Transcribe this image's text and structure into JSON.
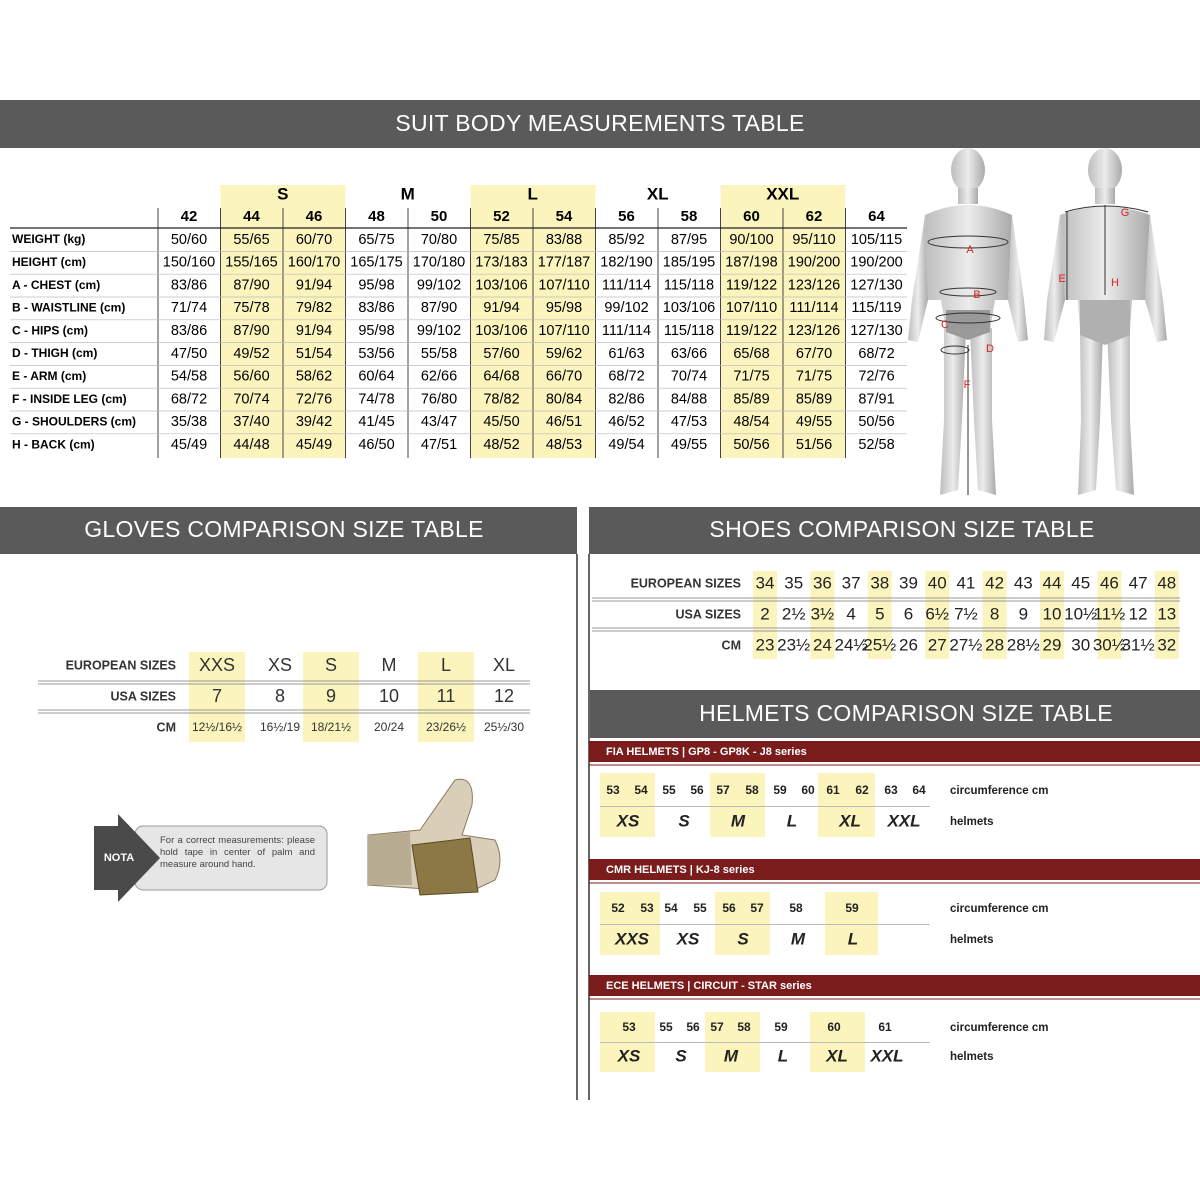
{
  "suit": {
    "title": "SUIT BODY MEASUREMENTS TABLE",
    "groups": [
      "S",
      "M",
      "L",
      "XL",
      "XXL"
    ],
    "sizes": [
      42,
      44,
      46,
      48,
      50,
      52,
      54,
      56,
      58,
      60,
      62,
      64
    ],
    "rows": [
      {
        "label": "WEIGHT (kg)",
        "values": [
          "50/60",
          "55/65",
          "60/70",
          "65/75",
          "70/80",
          "75/85",
          "83/88",
          "85/92",
          "87/95",
          "90/100",
          "95/110",
          "105/115"
        ]
      },
      {
        "label": "HEIGHT (cm)",
        "values": [
          "150/160",
          "155/165",
          "160/170",
          "165/175",
          "170/180",
          "173/183",
          "177/187",
          "182/190",
          "185/195",
          "187/198",
          "190/200",
          "190/200"
        ]
      },
      {
        "label": "A - CHEST (cm)",
        "values": [
          "83/86",
          "87/90",
          "91/94",
          "95/98",
          "99/102",
          "103/106",
          "107/110",
          "111/114",
          "115/118",
          "119/122",
          "123/126",
          "127/130"
        ]
      },
      {
        "label": "B - WAISTLINE (cm)",
        "values": [
          "71/74",
          "75/78",
          "79/82",
          "83/86",
          "87/90",
          "91/94",
          "95/98",
          "99/102",
          "103/106",
          "107/110",
          "111/114",
          "115/119"
        ]
      },
      {
        "label": "C - HIPS (cm)",
        "values": [
          "83/86",
          "87/90",
          "91/94",
          "95/98",
          "99/102",
          "103/106",
          "107/110",
          "111/114",
          "115/118",
          "119/122",
          "123/126",
          "127/130"
        ]
      },
      {
        "label": "D - THIGH (cm)",
        "values": [
          "47/50",
          "49/52",
          "51/54",
          "53/56",
          "55/58",
          "57/60",
          "59/62",
          "61/63",
          "63/66",
          "65/68",
          "67/70",
          "68/72"
        ]
      },
      {
        "label": "E - ARM (cm)",
        "values": [
          "54/58",
          "56/60",
          "58/62",
          "60/64",
          "62/66",
          "64/68",
          "66/70",
          "68/72",
          "70/74",
          "71/75",
          "71/75",
          "72/76"
        ]
      },
      {
        "label": "F - INSIDE LEG (cm)",
        "values": [
          "68/72",
          "70/74",
          "72/76",
          "74/78",
          "76/80",
          "78/82",
          "80/84",
          "82/86",
          "84/88",
          "85/89",
          "85/89",
          "87/91"
        ]
      },
      {
        "label": "G - SHOULDERS (cm)",
        "values": [
          "35/38",
          "37/40",
          "39/42",
          "41/45",
          "43/47",
          "45/50",
          "46/51",
          "46/52",
          "47/53",
          "48/54",
          "49/55",
          "50/56"
        ]
      },
      {
        "label": "H - BACK (cm)",
        "values": [
          "45/49",
          "44/48",
          "45/49",
          "46/50",
          "47/51",
          "48/52",
          "48/53",
          "49/54",
          "49/55",
          "50/56",
          "51/56",
          "52/58"
        ]
      }
    ],
    "figure_labels": [
      "A",
      "B",
      "C",
      "D",
      "E",
      "F",
      "G",
      "H"
    ]
  },
  "gloves": {
    "title": "GLOVES COMPARISON SIZE TABLE",
    "row_labels": [
      "EUROPEAN SIZES",
      "USA SIZES",
      "CM"
    ],
    "european": [
      "XXS",
      "XS",
      "S",
      "M",
      "L",
      "XL"
    ],
    "usa": [
      7,
      8,
      9,
      10,
      11,
      12
    ],
    "cm": [
      "12½/16½",
      "16½/19",
      "18/21½",
      "20/24",
      "23/26½",
      "25½/30"
    ],
    "note_label": "NOTA",
    "note": "For a correct measurements: please hold tape in center of palm and measure around hand."
  },
  "shoes": {
    "title": "SHOES COMPARISON SIZE TABLE",
    "row_labels": [
      "EUROPEAN SIZES",
      "USA SIZES",
      "CM"
    ],
    "european": [
      34,
      35,
      36,
      37,
      38,
      39,
      40,
      41,
      42,
      43,
      44,
      45,
      46,
      47,
      48
    ],
    "usa": [
      "2",
      "2½",
      "3½",
      "4",
      "5",
      "6",
      "6½",
      "7½",
      "8",
      "9",
      "10",
      "10½",
      "11½",
      "12",
      "13"
    ],
    "cm": [
      "23",
      "23½",
      "24",
      "24½",
      "25½",
      "26",
      "27",
      "27½",
      "28",
      "28½",
      "29",
      "30",
      "30½",
      "31½",
      "32"
    ]
  },
  "helmets": {
    "title": "HELMETS COMPARISON SIZE TABLE",
    "sections": [
      {
        "title": "FIA HELMETS | GP8 - GP8K - J8 series",
        "circumference": [
          53,
          54,
          55,
          56,
          57,
          58,
          59,
          60,
          61,
          62,
          63,
          64
        ],
        "sizes": [
          "XS",
          "S",
          "M",
          "L",
          "XL",
          "XXL"
        ],
        "circumference_label": "circumference cm",
        "sizes_label": "helmets"
      },
      {
        "title": "CMR HELMETS | KJ-8 series",
        "circumference": [
          52,
          53,
          54,
          55,
          56,
          57,
          58,
          59
        ],
        "sizes": [
          "XXS",
          "XS",
          "S",
          "M",
          "L"
        ],
        "circumference_label": "circumference cm",
        "sizes_label": "helmets"
      },
      {
        "title": "ECE HELMETS | CIRCUIT - STAR series",
        "circumference": [
          53,
          55,
          56,
          57,
          58,
          59,
          60,
          61
        ],
        "sizes": [
          "XS",
          "S",
          "M",
          "L",
          "XL",
          "XXL"
        ],
        "circumference_label": "circumference cm",
        "sizes_label": "helmets"
      }
    ]
  }
}
